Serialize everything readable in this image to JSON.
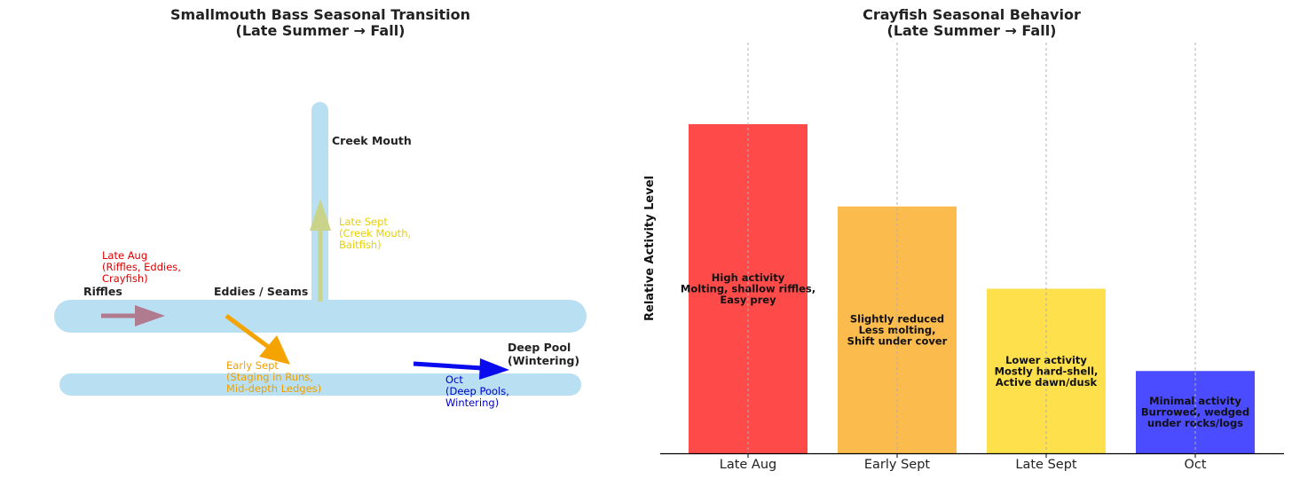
{
  "chart_data": [
    {
      "type": "diagram",
      "title": [
        "Smallmouth Bass Seasonal Transition",
        "(Late Summer → Fall)"
      ],
      "locations": [
        {
          "name": "Riffles"
        },
        {
          "name": "Eddies / Seams"
        },
        {
          "name": "Creek Mouth"
        },
        {
          "name": [
            "Deep Pool",
            "(Wintering)"
          ]
        }
      ],
      "movements": [
        {
          "period": "Late Aug",
          "lines": [
            "Late Aug",
            "(Riffles, Eddies,",
            "Crayfish)"
          ],
          "color": "#dd0000",
          "arrow_color": "#b07b8e"
        },
        {
          "period": "Early Sept",
          "lines": [
            "Early Sept",
            "(Staging in Runs,",
            "Mid-depth Ledges)"
          ],
          "color": "#f0a000",
          "arrow_color": "#f5a300"
        },
        {
          "period": "Late Sept",
          "lines": [
            "Late Sept",
            "(Creek Mouth,",
            "Baitfish)"
          ],
          "color": "#e8d000",
          "arrow_color": "#c9d38a"
        },
        {
          "period": "Oct",
          "lines": [
            "Oct",
            "(Deep Pools,",
            "Wintering)"
          ],
          "color": "#0000cc",
          "arrow_color": "#0a0aee"
        }
      ],
      "colors": {
        "river": "#b8e0f2"
      }
    },
    {
      "type": "bar",
      "title": [
        "Crayfish Seasonal Behavior",
        "(Late Summer → Fall)"
      ],
      "xlabel": "",
      "ylabel": "Relative Activity Level",
      "categories": [
        "Late Aug",
        "Early Sept",
        "Late Sept",
        "Oct"
      ],
      "values": [
        4,
        3,
        2,
        1
      ],
      "ylim": [
        0,
        5
      ],
      "grid": "vertical",
      "colors": [
        "#ff4a4a",
        "#fbbb4d",
        "#fde04c",
        "#4b4bff"
      ],
      "bar_labels": [
        [
          "High activity",
          "Molting, shallow riffles,",
          "Easy prey"
        ],
        [
          "Slightly reduced",
          "Less molting,",
          "Shift under cover"
        ],
        [
          "Lower activity",
          "Mostly hard-shell,",
          "Active dawn/dusk"
        ],
        [
          "Minimal activity",
          "Burrowed, wedged",
          "under rocks/logs"
        ]
      ]
    }
  ]
}
